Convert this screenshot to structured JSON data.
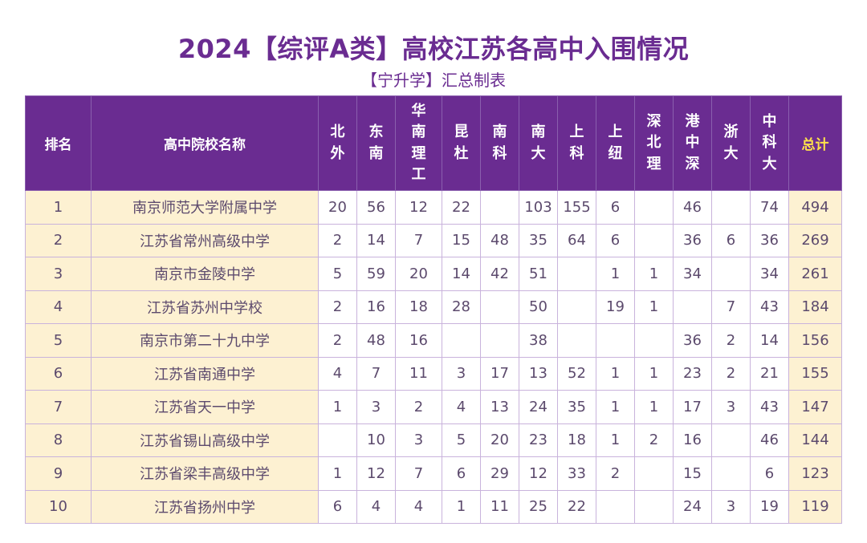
{
  "title": "2024【综评A类】高校江苏各高中入围情况",
  "subtitle": "【宁升学】汇总制表",
  "columns": [
    "排名",
    "高中院校名称",
    "北外",
    "东南",
    "华南理工",
    "昆杜",
    "南科",
    "南大",
    "上科",
    "上纽",
    "深北理",
    "港中深",
    "浙大",
    "中科大",
    "总计"
  ],
  "rows": [
    {
      "rank": "1",
      "school": "南京师范大学附属中学",
      "vals": [
        "20",
        "56",
        "12",
        "22",
        "",
        "103",
        "155",
        "6",
        "",
        "46",
        "",
        "74"
      ],
      "total": "494"
    },
    {
      "rank": "2",
      "school": "江苏省常州高级中学",
      "vals": [
        "2",
        "14",
        "7",
        "15",
        "48",
        "35",
        "64",
        "6",
        "",
        "36",
        "6",
        "36"
      ],
      "total": "269"
    },
    {
      "rank": "3",
      "school": "南京市金陵中学",
      "vals": [
        "5",
        "59",
        "20",
        "14",
        "42",
        "51",
        "",
        "1",
        "1",
        "34",
        "",
        "34"
      ],
      "total": "261"
    },
    {
      "rank": "4",
      "school": "江苏省苏州中学校",
      "vals": [
        "2",
        "16",
        "18",
        "28",
        "",
        "50",
        "",
        "19",
        "1",
        "",
        "7",
        "43"
      ],
      "total": "184"
    },
    {
      "rank": "5",
      "school": "南京市第二十九中学",
      "vals": [
        "2",
        "48",
        "16",
        "",
        "",
        "38",
        "",
        "",
        "",
        "36",
        "2",
        "14"
      ],
      "total": "156"
    },
    {
      "rank": "6",
      "school": "江苏省南通中学",
      "vals": [
        "4",
        "7",
        "11",
        "3",
        "17",
        "13",
        "52",
        "1",
        "1",
        "23",
        "2",
        "21"
      ],
      "total": "155"
    },
    {
      "rank": "7",
      "school": "江苏省天一中学",
      "vals": [
        "1",
        "3",
        "2",
        "4",
        "13",
        "24",
        "35",
        "1",
        "1",
        "17",
        "3",
        "43"
      ],
      "total": "147"
    },
    {
      "rank": "8",
      "school": "江苏省锡山高级中学",
      "vals": [
        "",
        "10",
        "3",
        "5",
        "20",
        "23",
        "18",
        "1",
        "2",
        "16",
        "",
        "46"
      ],
      "total": "144"
    },
    {
      "rank": "9",
      "school": "江苏省梁丰高级中学",
      "vals": [
        "1",
        "12",
        "7",
        "6",
        "29",
        "12",
        "33",
        "2",
        "",
        "15",
        "",
        "6"
      ],
      "total": "123"
    },
    {
      "rank": "10",
      "school": "江苏省扬州中学",
      "vals": [
        "6",
        "4",
        "4",
        "1",
        "11",
        "25",
        "22",
        "",
        "",
        "24",
        "3",
        "19"
      ],
      "total": "119"
    }
  ]
}
